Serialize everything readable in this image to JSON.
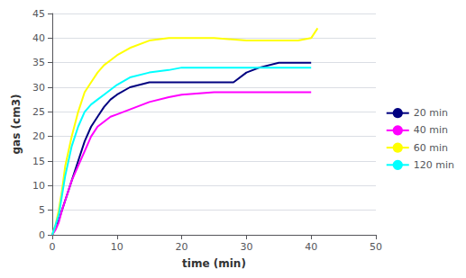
{
  "chart_data": {
    "type": "line",
    "xlabel": "time (min)",
    "ylabel": "gas (cm3)",
    "xlim": [
      0,
      50
    ],
    "ylim": [
      0,
      45
    ],
    "xticks": [
      0,
      10,
      20,
      30,
      40,
      50
    ],
    "yticks": [
      0,
      5,
      10,
      15,
      20,
      25,
      30,
      35,
      40,
      45
    ],
    "grid": true,
    "legend": "right",
    "series": [
      {
        "name": "20 min",
        "color": "#000080",
        "x": [
          0,
          0.5,
          1,
          1.5,
          2,
          3,
          4,
          5,
          6,
          7,
          8,
          9,
          10,
          12,
          15,
          18,
          20,
          22,
          24,
          26,
          28,
          30,
          32,
          35,
          38,
          40
        ],
        "values": [
          0,
          1.5,
          3,
          5,
          7,
          11,
          15,
          19,
          22,
          24,
          26,
          27.5,
          28.5,
          30,
          31,
          31,
          31,
          31,
          31,
          31,
          31,
          33,
          34,
          35,
          35,
          35
        ]
      },
      {
        "name": "40 min",
        "color": "#FF00FF",
        "x": [
          0,
          0.5,
          1,
          1.5,
          2,
          3,
          4,
          5,
          6,
          7,
          8,
          9,
          10,
          12,
          15,
          18,
          20,
          25,
          30,
          35,
          40
        ],
        "values": [
          0,
          1,
          2.5,
          5,
          7,
          11,
          14,
          17,
          20,
          22,
          23,
          24,
          24.5,
          25.5,
          27,
          28,
          28.5,
          29,
          29,
          29,
          29
        ]
      },
      {
        "name": "60 min",
        "color": "#FFFF00",
        "x": [
          0,
          0.5,
          1,
          1.5,
          2,
          3,
          4,
          5,
          6,
          7,
          8,
          9,
          10,
          12,
          15,
          18,
          20,
          22,
          25,
          30,
          35,
          38,
          40,
          41
        ],
        "values": [
          0,
          2,
          5,
          9,
          14,
          20,
          25,
          29,
          31,
          33,
          34.5,
          35.5,
          36.5,
          38,
          39.5,
          40,
          40,
          40,
          40,
          39.5,
          39.5,
          39.5,
          40,
          42
        ]
      },
      {
        "name": "120 min",
        "color": "#00FFFF",
        "x": [
          0,
          0.5,
          1,
          1.5,
          2,
          3,
          4,
          5,
          6,
          7,
          8,
          9,
          10,
          12,
          15,
          18,
          20,
          22,
          25,
          30,
          35,
          40
        ],
        "values": [
          0,
          2,
          4,
          8,
          12,
          18,
          22,
          25,
          26.5,
          27.5,
          28.5,
          29.5,
          30.5,
          32,
          33,
          33.5,
          34,
          34,
          34,
          34,
          34,
          34
        ]
      }
    ]
  }
}
